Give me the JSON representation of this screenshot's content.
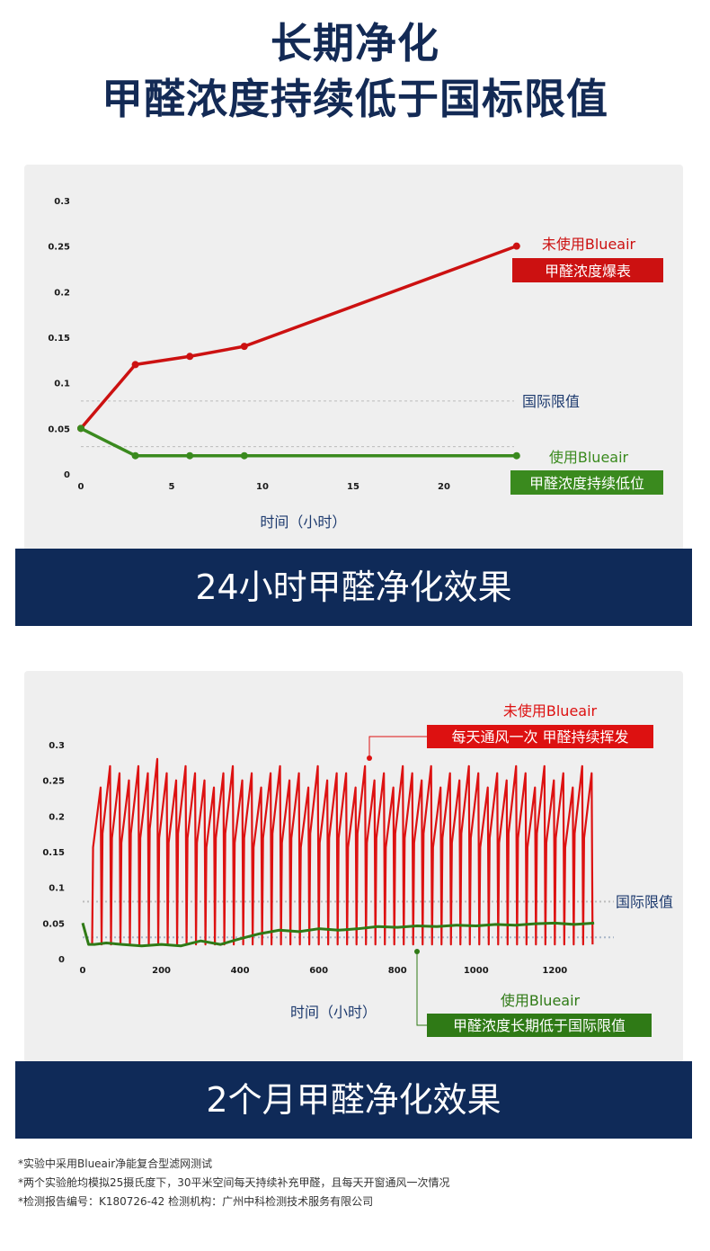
{
  "header": {
    "line1": "长期净化",
    "line2": "甲醛浓度持续低于国标限值"
  },
  "banners": {
    "chart1": "24小时甲醛净化效果",
    "chart2": "2个月甲醛净化效果"
  },
  "chart_data": [
    {
      "type": "line",
      "title": "24小时甲醛净化效果",
      "xlabel": "时间（小时）",
      "ylabel": "",
      "xlim": [
        0,
        25
      ],
      "ylim": [
        0,
        0.3
      ],
      "x_ticks": [
        "0",
        "5",
        "10",
        "15",
        "20"
      ],
      "x_tick_values": [
        0,
        5,
        10,
        15,
        20
      ],
      "y_ticks": [
        "0",
        "0.05",
        "0.1",
        "0.15",
        "0.2",
        "0.25",
        "0.3"
      ],
      "y_tick_values": [
        0,
        0.05,
        0.1,
        0.15,
        0.2,
        0.25,
        0.3
      ],
      "reference_lines": [
        {
          "label": "国际限值",
          "y": 0.08,
          "color": "#bcbcbc"
        },
        {
          "label": "",
          "y": 0.03,
          "color": "#bcbcbc"
        }
      ],
      "series": [
        {
          "name": "未使用Blueair",
          "tag": "甲醛浓度爆表",
          "color": "#cc1111",
          "x": [
            0,
            3,
            6,
            9,
            24
          ],
          "y": [
            0.05,
            0.12,
            0.129,
            0.14,
            0.25
          ]
        },
        {
          "name": "使用Blueair",
          "tag": "甲醛浓度持续低位",
          "color": "#3a8a1e",
          "x": [
            0,
            3,
            6,
            9,
            24
          ],
          "y": [
            0.05,
            0.02,
            0.02,
            0.02,
            0.02
          ]
        }
      ]
    },
    {
      "type": "line",
      "title": "2个月甲醛净化效果",
      "xlabel": "时间（小时）",
      "ylabel": "",
      "xlim": [
        0,
        1350
      ],
      "ylim": [
        0,
        0.3
      ],
      "x_ticks": [
        "0",
        "200",
        "400",
        "600",
        "800",
        "1000",
        "1200"
      ],
      "x_tick_values": [
        0,
        200,
        400,
        600,
        800,
        1000,
        1200
      ],
      "y_ticks": [
        "0",
        "0.05",
        "0.1",
        "0.15",
        "0.2",
        "0.25",
        "0.3"
      ],
      "y_tick_values": [
        0,
        0.05,
        0.1,
        0.15,
        0.2,
        0.25,
        0.3
      ],
      "reference_lines": [
        {
          "label": "国际限值",
          "y": 0.08,
          "color": "#bcbcbc"
        },
        {
          "label": "",
          "y": 0.03,
          "color": "#a8b6c8"
        }
      ],
      "series": [
        {
          "name": "未使用Blueair",
          "tag": "每天通风一次 甲醛持续挥发",
          "color": "#dd1111",
          "pattern": "daily sawtooth: rises to peak then drops to near 0 every 24 h",
          "x_start": 24,
          "period": 24,
          "cycles": 53,
          "peaks": [
            0.24,
            0.27,
            0.26,
            0.25,
            0.27,
            0.26,
            0.28,
            0.26,
            0.25,
            0.27,
            0.26,
            0.25,
            0.24,
            0.26,
            0.27,
            0.25,
            0.26,
            0.24,
            0.26,
            0.27,
            0.25,
            0.26,
            0.24,
            0.27,
            0.25,
            0.26,
            0.26,
            0.24,
            0.27,
            0.25,
            0.26,
            0.24,
            0.27,
            0.26,
            0.25,
            0.27,
            0.24,
            0.26,
            0.25,
            0.27,
            0.26,
            0.24,
            0.26,
            0.25,
            0.27,
            0.26,
            0.24,
            0.27,
            0.25,
            0.26,
            0.24,
            0.27,
            0.26
          ],
          "trough": 0.02
        },
        {
          "name": "使用Blueair",
          "tag": "甲醛浓度长期低于国际限值",
          "color": "#2f7a16",
          "x": [
            0,
            15,
            30,
            60,
            100,
            150,
            200,
            250,
            300,
            350,
            400,
            450,
            500,
            550,
            600,
            650,
            700,
            750,
            800,
            850,
            900,
            950,
            1000,
            1050,
            1100,
            1150,
            1200,
            1250,
            1300
          ],
          "y": [
            0.05,
            0.02,
            0.02,
            0.022,
            0.02,
            0.018,
            0.02,
            0.018,
            0.025,
            0.02,
            0.028,
            0.035,
            0.04,
            0.038,
            0.042,
            0.04,
            0.042,
            0.045,
            0.044,
            0.046,
            0.045,
            0.047,
            0.046,
            0.048,
            0.047,
            0.049,
            0.05,
            0.048,
            0.05
          ]
        }
      ]
    }
  ],
  "footnotes": [
    "*实验中采用Blueair净能复合型滤网测试",
    "*两个实验舱均模拟25摄氏度下，30平米空间每天持续补充甲醛，且每天开窗通风一次情况",
    "*检测报告编号：K180726-42  检测机构：广州中科检测技术服务有限公司"
  ]
}
